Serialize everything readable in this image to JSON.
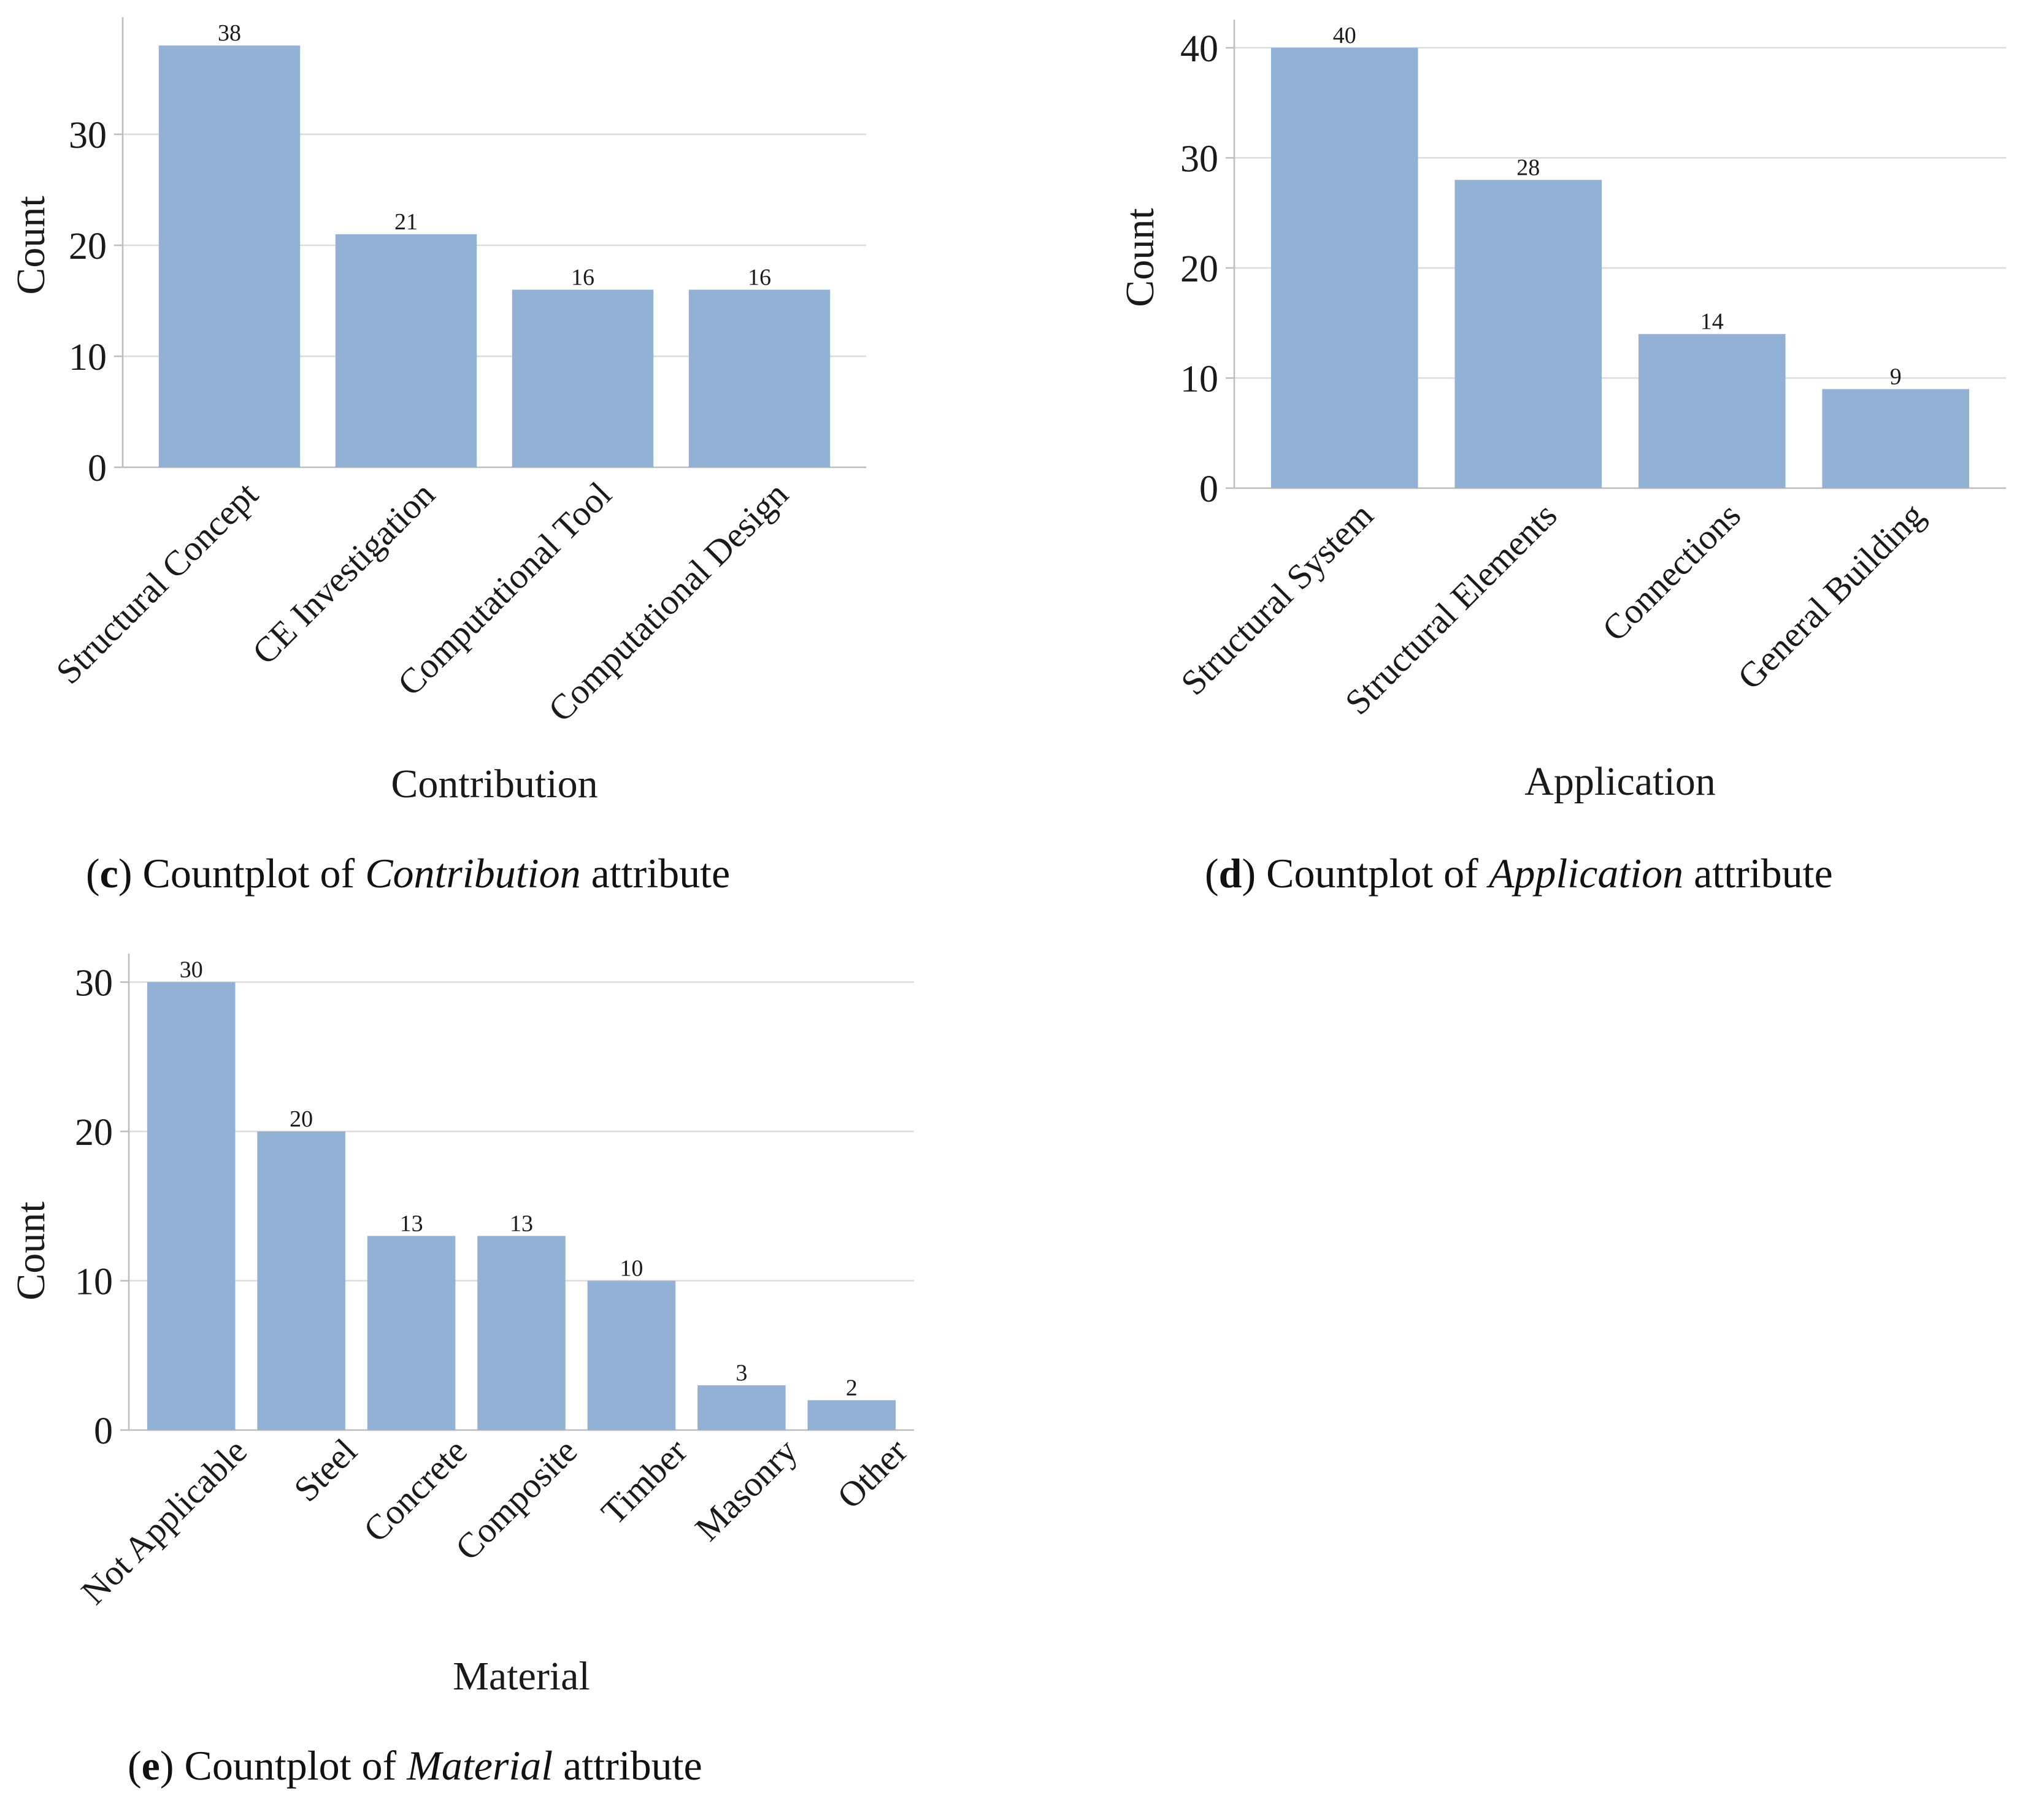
{
  "colors": {
    "bar": "#93b1d5",
    "grid": "#dcdcdc",
    "axis": "#bdbdbd",
    "text": "#1a1a1a"
  },
  "chart_data": [
    {
      "id": "c",
      "type": "bar",
      "title": "",
      "xlabel": "Contribution",
      "ylabel": "Count",
      "categories": [
        "Structural Concept",
        "CE Investigation",
        "Computational Tool",
        "Computational Design"
      ],
      "values": [
        38,
        21,
        16,
        16
      ],
      "data_labels": [
        "38",
        "21",
        "16",
        "16"
      ],
      "yticks": [
        0,
        10,
        20,
        30
      ],
      "ylim": [
        0,
        40
      ],
      "grid": "y",
      "caption": {
        "letter": "c",
        "prefix": "Countplot of ",
        "attribute": "Contribution",
        "suffix": " attribute"
      }
    },
    {
      "id": "d",
      "type": "bar",
      "title": "",
      "xlabel": "Application",
      "ylabel": "Count",
      "categories": [
        "Structural System",
        "Structural Elements",
        "Connections",
        "General Building"
      ],
      "values": [
        40,
        28,
        14,
        9
      ],
      "data_labels": [
        "40",
        "28",
        "14",
        "9"
      ],
      "yticks": [
        0,
        10,
        20,
        30,
        40
      ],
      "ylim": [
        0,
        42
      ],
      "grid": "y",
      "caption": {
        "letter": "d",
        "prefix": "Countplot of ",
        "attribute": "Application",
        "suffix": " attribute"
      }
    },
    {
      "id": "e",
      "type": "bar",
      "title": "",
      "xlabel": "Material",
      "ylabel": "Count",
      "categories": [
        "Not Applicable",
        "Steel",
        "Concrete",
        "Composite",
        "Timber",
        "Masonry",
        "Other"
      ],
      "values": [
        30,
        20,
        13,
        13,
        10,
        3,
        2
      ],
      "data_labels": [
        "30",
        "20",
        "13",
        "13",
        "10",
        "3",
        "2"
      ],
      "yticks": [
        0,
        10,
        20,
        30
      ],
      "ylim": [
        0,
        31.5
      ],
      "grid": "y",
      "caption": {
        "letter": "e",
        "prefix": "Countplot of ",
        "attribute": "Material",
        "suffix": " attribute"
      }
    }
  ]
}
